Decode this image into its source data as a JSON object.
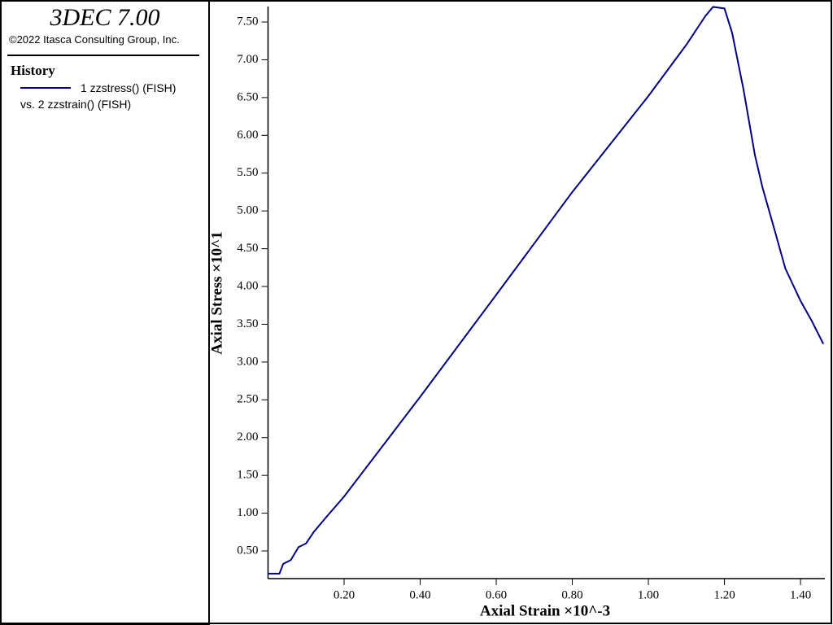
{
  "sidebar": {
    "app_title": "3DEC 7.00",
    "copyright": "©2022 Itasca Consulting Group, Inc.",
    "legend_title": "History",
    "legend_vs": "vs. 2 zzstrain() (FISH)"
  },
  "chart_data": {
    "type": "line",
    "x_label": "Axial Strain ×10^-3",
    "y_label": "Axial Stress ×10^1",
    "xlim": [
      0,
      1.464
    ],
    "ylim": [
      0.134,
      7.705
    ],
    "xticks": [
      {
        "value": 0.2,
        "label": "0.20"
      },
      {
        "value": 0.4,
        "label": "0.40"
      },
      {
        "value": 0.6,
        "label": "0.60"
      },
      {
        "value": 0.8,
        "label": "0.80"
      },
      {
        "value": 1.0,
        "label": "1.00"
      },
      {
        "value": 1.2,
        "label": "1.20"
      },
      {
        "value": 1.4,
        "label": "1.40"
      }
    ],
    "yticks": [
      {
        "value": 0.5,
        "label": "0.50"
      },
      {
        "value": 1.0,
        "label": "1.00"
      },
      {
        "value": 1.5,
        "label": "1.50"
      },
      {
        "value": 2.0,
        "label": "2.00"
      },
      {
        "value": 2.5,
        "label": "2.50"
      },
      {
        "value": 3.0,
        "label": "3.00"
      },
      {
        "value": 3.5,
        "label": "3.50"
      },
      {
        "value": 4.0,
        "label": "4.00"
      },
      {
        "value": 4.5,
        "label": "4.50"
      },
      {
        "value": 5.0,
        "label": "5.00"
      },
      {
        "value": 5.5,
        "label": "5.50"
      },
      {
        "value": 6.0,
        "label": "6.00"
      },
      {
        "value": 6.5,
        "label": "6.50"
      },
      {
        "value": 7.0,
        "label": "7.00"
      },
      {
        "value": 7.5,
        "label": "7.50"
      }
    ],
    "x": [
      0,
      0.03,
      0.04,
      0.06,
      0.08,
      0.1,
      0.12,
      0.15,
      0.2,
      0.4,
      0.6,
      0.8,
      1.0,
      1.1,
      1.15,
      1.17,
      1.2,
      1.22,
      1.25,
      1.28,
      1.3,
      1.33,
      1.36,
      1.4,
      1.43,
      1.46
    ],
    "series": [
      {
        "name": "1 zzstress() (FISH)",
        "color": "#000080",
        "values": [
          0.2,
          0.2,
          0.33,
          0.38,
          0.55,
          0.6,
          0.75,
          0.93,
          1.22,
          2.54,
          3.89,
          5.25,
          6.52,
          7.2,
          7.58,
          7.7,
          7.68,
          7.36,
          6.61,
          5.74,
          5.31,
          4.78,
          4.24,
          3.81,
          3.54,
          3.24
        ]
      }
    ]
  }
}
